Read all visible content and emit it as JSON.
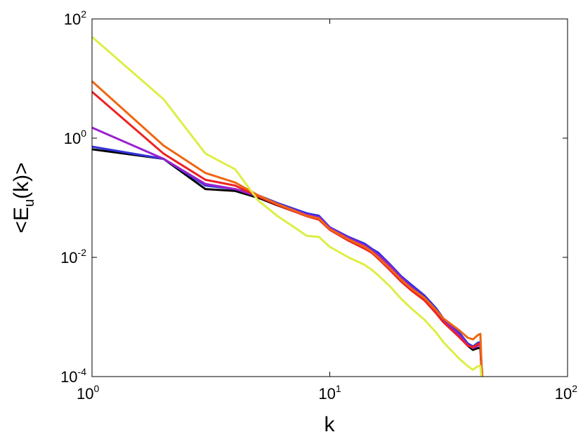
{
  "chart_data": {
    "type": "line",
    "title": "",
    "xlabel": "k",
    "ylabel": {
      "prefix": "<E",
      "sub": "u",
      "suffix": "(k)>"
    },
    "x_scale": "log",
    "y_scale": "log",
    "xlim": [
      1,
      100
    ],
    "ylim": [
      0.0001,
      100
    ],
    "grid": false,
    "legend": "none",
    "x_ticks": [
      {
        "value": 1,
        "base": "10",
        "exp": "0"
      },
      {
        "value": 10,
        "base": "10",
        "exp": "1"
      },
      {
        "value": 100,
        "base": "10",
        "exp": "2"
      }
    ],
    "y_ticks": [
      {
        "value": 0.0001,
        "base": "10",
        "exp": "-4"
      },
      {
        "value": 0.01,
        "base": "10",
        "exp": "-2"
      },
      {
        "value": 1,
        "base": "10",
        "exp": "0"
      },
      {
        "value": 100,
        "base": "10",
        "exp": "2"
      }
    ],
    "series": [
      {
        "color": "#000000",
        "x": [
          1,
          2,
          3,
          4,
          5,
          6,
          7,
          8,
          9,
          10,
          12,
          14,
          15,
          16,
          18,
          20,
          22,
          25,
          28,
          30,
          35,
          38,
          40,
          42,
          43,
          43.5,
          44
        ],
        "y": [
          0.65,
          0.45,
          0.14,
          0.13,
          0.1,
          0.075,
          0.06,
          0.05,
          0.045,
          0.03,
          0.02,
          0.015,
          0.012,
          0.01,
          0.0065,
          0.0042,
          0.003,
          0.002,
          0.0012,
          0.00085,
          0.00048,
          0.00033,
          0.00028,
          0.0003,
          0.0003,
          0.00012,
          8e-05
        ]
      },
      {
        "color": "#3333dd",
        "x": [
          1,
          2,
          3,
          4,
          5,
          6,
          7,
          8,
          9,
          10,
          12,
          14,
          15,
          16,
          18,
          20,
          22,
          25,
          28,
          30,
          35,
          38,
          40,
          42,
          43,
          43.5,
          44
        ],
        "y": [
          0.72,
          0.45,
          0.16,
          0.14,
          0.11,
          0.082,
          0.066,
          0.055,
          0.05,
          0.032,
          0.022,
          0.017,
          0.014,
          0.012,
          0.0075,
          0.0048,
          0.0035,
          0.0023,
          0.0014,
          0.00095,
          0.00055,
          0.00036,
          0.00032,
          0.00037,
          0.00038,
          0.00015,
          8e-05
        ]
      },
      {
        "color": "#9922cc",
        "x": [
          1,
          2,
          3,
          4,
          5,
          6,
          7,
          8,
          9,
          10,
          12,
          14,
          15,
          16,
          18,
          20,
          22,
          25,
          28,
          30,
          35,
          38,
          40,
          42,
          43,
          43.5,
          44
        ],
        "y": [
          1.5,
          0.45,
          0.17,
          0.14,
          0.105,
          0.078,
          0.063,
          0.052,
          0.047,
          0.031,
          0.021,
          0.016,
          0.013,
          0.011,
          0.0071,
          0.0045,
          0.0032,
          0.0021,
          0.0013,
          0.0009,
          0.0005,
          0.00034,
          0.0003,
          0.00033,
          0.00034,
          0.00013,
          8e-05
        ]
      },
      {
        "color": "#ee2222",
        "x": [
          1,
          2,
          3,
          4,
          5,
          6,
          7,
          8,
          9,
          10,
          12,
          14,
          15,
          16,
          18,
          20,
          22,
          25,
          28,
          30,
          35,
          38,
          40,
          42,
          43,
          43.5,
          44
        ],
        "y": [
          6.0,
          0.55,
          0.2,
          0.16,
          0.105,
          0.076,
          0.06,
          0.049,
          0.043,
          0.029,
          0.019,
          0.014,
          0.012,
          0.0095,
          0.006,
          0.0039,
          0.0028,
          0.0019,
          0.00115,
          0.00082,
          0.00046,
          0.00033,
          0.00031,
          0.00035,
          0.00036,
          0.00013,
          8e-05
        ]
      },
      {
        "color": "#ee6611",
        "x": [
          1,
          2,
          3,
          4,
          5,
          6,
          7,
          8,
          9,
          10,
          12,
          14,
          15,
          16,
          18,
          20,
          22,
          25,
          28,
          30,
          35,
          38,
          40,
          42,
          43,
          43.5,
          44
        ],
        "y": [
          9.0,
          0.75,
          0.26,
          0.18,
          0.11,
          0.079,
          0.062,
          0.05,
          0.045,
          0.03,
          0.02,
          0.015,
          0.0125,
          0.01,
          0.0064,
          0.0042,
          0.003,
          0.0021,
          0.0013,
          0.00095,
          0.0006,
          0.00045,
          0.00042,
          0.0005,
          0.00052,
          0.00015,
          8e-05
        ]
      },
      {
        "color": "#ddee44",
        "x": [
          1,
          2,
          3,
          4,
          5,
          6,
          7,
          8,
          9,
          10,
          12,
          14,
          15,
          16,
          18,
          20,
          22,
          25,
          28,
          30,
          35,
          38,
          40,
          42,
          43,
          43.5,
          44
        ],
        "y": [
          50,
          4.5,
          0.55,
          0.3,
          0.09,
          0.05,
          0.033,
          0.023,
          0.022,
          0.015,
          0.01,
          0.0075,
          0.0062,
          0.005,
          0.0032,
          0.002,
          0.0014,
          0.0009,
          0.00055,
          0.00038,
          0.0002,
          0.00015,
          0.00013,
          0.00015,
          0.00015,
          9e-05,
          7e-05
        ]
      }
    ]
  }
}
